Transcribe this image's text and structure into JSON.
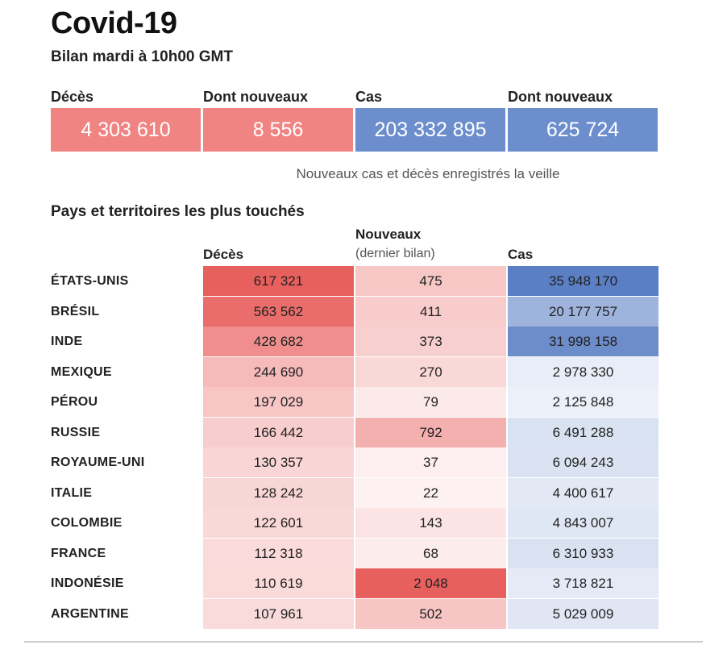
{
  "title": "Covid-19",
  "subtitle": "Bilan mardi à 10h00 GMT",
  "summary": [
    {
      "label": "Décès",
      "value": "4 303 610",
      "color": "#f08482"
    },
    {
      "label": "Dont nouveaux",
      "value": "8 556",
      "color": "#f08482"
    },
    {
      "label": "Cas",
      "value": "203 332 895",
      "color": "#6c8ecd"
    },
    {
      "label": "Dont nouveaux",
      "value": "625 724",
      "color": "#6c8ecd"
    }
  ],
  "note": "Nouveaux cas et décès enregistrés la veille",
  "section_title": "Pays et territoires les plus touchés",
  "columns": {
    "deaths": "Décès",
    "new": "Nouveaux",
    "new_sub": "(dernier bilan)",
    "cases": "Cas"
  },
  "colors": {
    "red": "#e8605e",
    "blue": "#5b7fc4"
  },
  "chart_data": {
    "type": "table",
    "title": "Pays et territoires les plus touchés",
    "columns": [
      "Décès",
      "Nouveaux (dernier bilan)",
      "Cas"
    ],
    "rows": [
      {
        "country": "ÉTATS-UNIS",
        "deaths": "617 321",
        "new": "475",
        "cases": "35 948 170",
        "deaths_n": 617321,
        "new_n": 475,
        "cases_n": 35948170
      },
      {
        "country": "BRÉSIL",
        "deaths": "563 562",
        "new": "411",
        "cases": "20 177 757",
        "deaths_n": 563562,
        "new_n": 411,
        "cases_n": 20177757
      },
      {
        "country": "INDE",
        "deaths": "428 682",
        "new": "373",
        "cases": "31 998 158",
        "deaths_n": 428682,
        "new_n": 373,
        "cases_n": 31998158
      },
      {
        "country": "MEXIQUE",
        "deaths": "244 690",
        "new": "270",
        "cases": "2 978 330",
        "deaths_n": 244690,
        "new_n": 270,
        "cases_n": 2978330
      },
      {
        "country": "PÉROU",
        "deaths": "197 029",
        "new": "79",
        "cases": "2 125 848",
        "deaths_n": 197029,
        "new_n": 79,
        "cases_n": 2125848
      },
      {
        "country": "RUSSIE",
        "deaths": "166 442",
        "new": "792",
        "cases": "6 491 288",
        "deaths_n": 166442,
        "new_n": 792,
        "cases_n": 6491288
      },
      {
        "country": "ROYAUME-UNI",
        "deaths": "130 357",
        "new": "37",
        "cases": "6 094 243",
        "deaths_n": 130357,
        "new_n": 37,
        "cases_n": 6094243
      },
      {
        "country": "ITALIE",
        "deaths": "128 242",
        "new": "22",
        "cases": "4 400 617",
        "deaths_n": 128242,
        "new_n": 22,
        "cases_n": 4400617
      },
      {
        "country": "COLOMBIE",
        "deaths": "122 601",
        "new": "143",
        "cases": "4 843 007",
        "deaths_n": 122601,
        "new_n": 143,
        "cases_n": 4843007
      },
      {
        "country": "FRANCE",
        "deaths": "112 318",
        "new": "68",
        "cases": "6 310 933",
        "deaths_n": 112318,
        "new_n": 68,
        "cases_n": 6310933
      },
      {
        "country": "INDONÉSIE",
        "deaths": "110 619",
        "new": "2 048",
        "cases": "3 718 821",
        "deaths_n": 110619,
        "new_n": 2048,
        "cases_n": 3718821
      },
      {
        "country": "ARGENTINE",
        "deaths": "107 961",
        "new": "502",
        "cases": "5 029 009",
        "deaths_n": 107961,
        "new_n": 502,
        "cases_n": 5029009
      }
    ]
  }
}
